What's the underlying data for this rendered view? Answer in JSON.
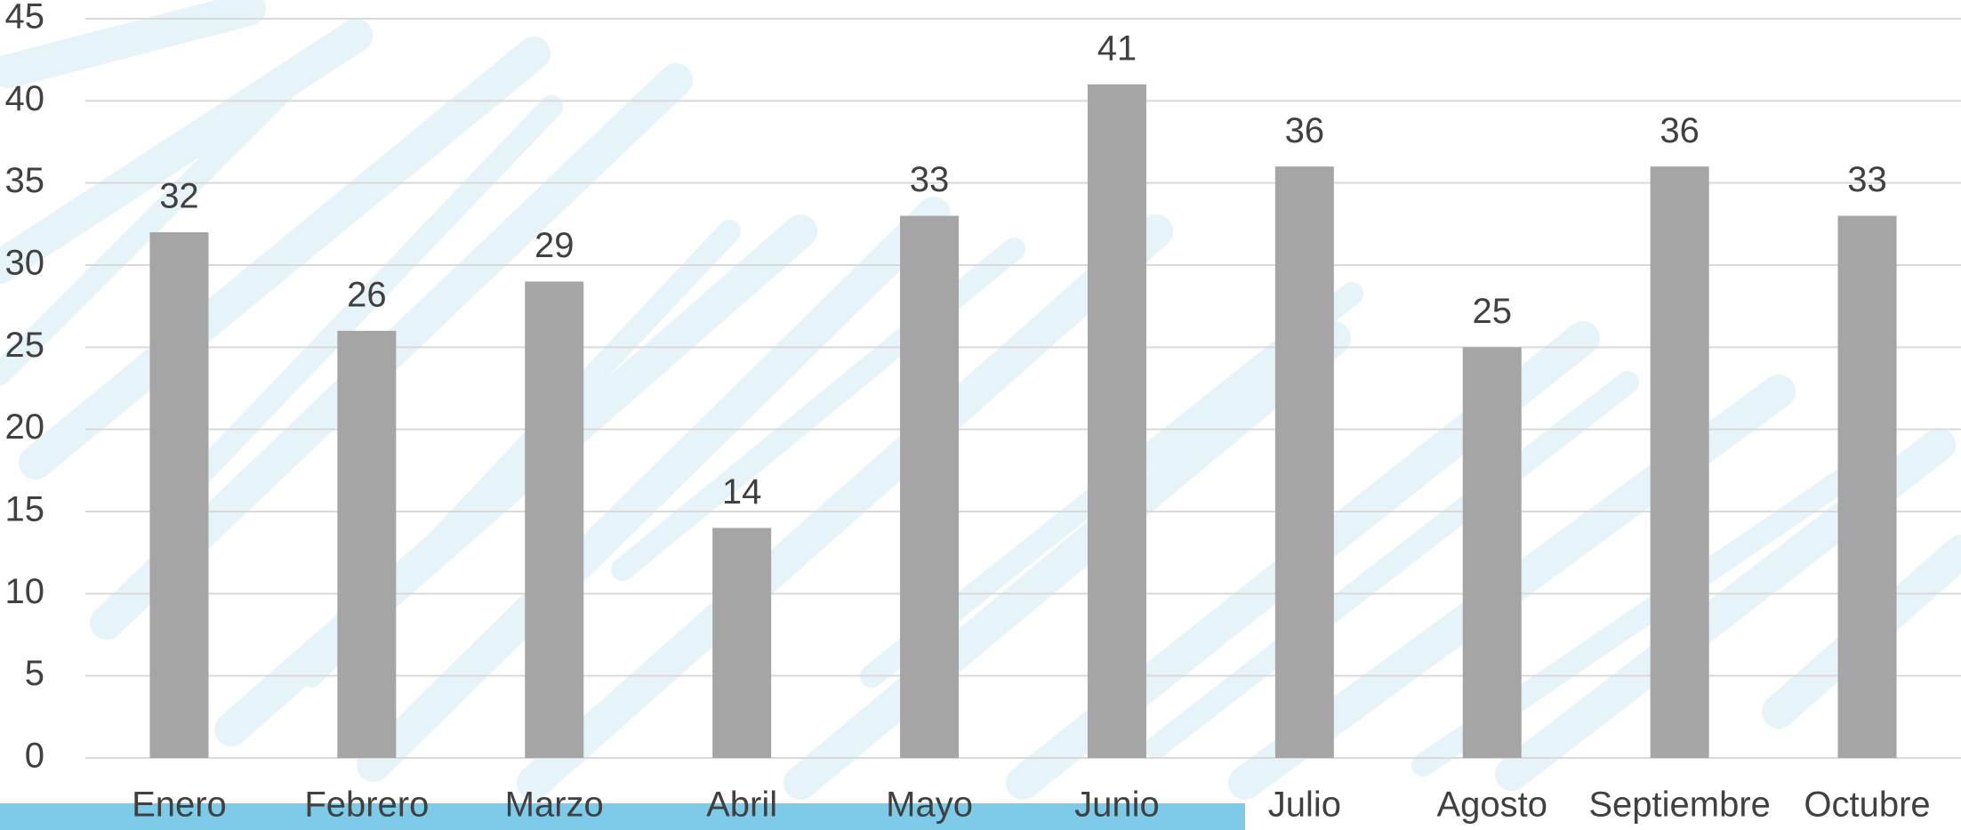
{
  "chart_data": {
    "type": "bar",
    "categories": [
      "Enero",
      "Febrero",
      "Marzo",
      "Abril",
      "Mayo",
      "Junio",
      "Julio",
      "Agosto",
      "Septiembre",
      "Octubre"
    ],
    "values": [
      32,
      26,
      29,
      14,
      33,
      41,
      36,
      25,
      36,
      33
    ],
    "color": "#a5a5a5",
    "ylim": [
      0,
      45
    ],
    "yticks": [
      0,
      5,
      10,
      15,
      20,
      25,
      30,
      35,
      40,
      45
    ],
    "grid": true
  }
}
